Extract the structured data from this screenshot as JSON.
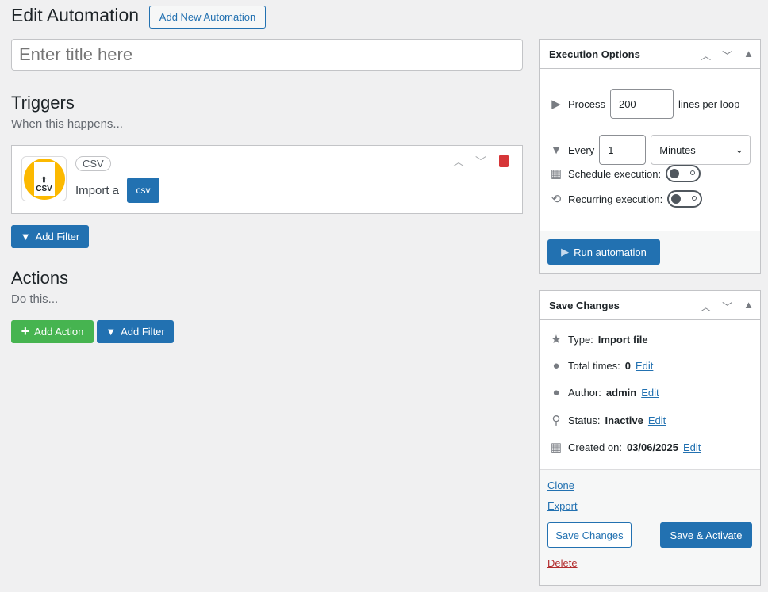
{
  "header": {
    "title": "Edit Automation",
    "add_new": "Add New Automation"
  },
  "title_input": {
    "placeholder": "Enter title here",
    "value": ""
  },
  "triggers": {
    "heading": "Triggers",
    "subheading": "When this happens...",
    "card": {
      "badge": "CSV",
      "icon_text": "CSV",
      "text": "Import a",
      "tag": "csv"
    },
    "add_filter": "Add Filter"
  },
  "actions": {
    "heading": "Actions",
    "subheading": "Do this...",
    "add_action": "Add Action",
    "add_filter": "Add Filter"
  },
  "execution": {
    "title": "Execution Options",
    "process_label": "Process",
    "process_value": "200",
    "process_suffix": "lines per loop",
    "every_label": "Every",
    "every_value": "1",
    "every_unit": "Minutes",
    "schedule_label": "Schedule execution:",
    "schedule_on": false,
    "recurring_label": "Recurring execution:",
    "recurring_on": false,
    "run": "Run automation"
  },
  "save": {
    "title": "Save Changes",
    "type_label": "Type:",
    "type_value": "Import file",
    "total_label": "Total times:",
    "total_value": "0",
    "author_label": "Author:",
    "author_value": "admin",
    "status_label": "Status:",
    "status_value": "Inactive",
    "created_label": "Created on:",
    "created_value": "03/06/2025",
    "edit": "Edit",
    "clone": "Clone",
    "export": "Export",
    "save_changes": "Save Changes",
    "save_activate": "Save & Activate",
    "delete": "Delete"
  },
  "colors": {
    "primary": "#2271b1",
    "success": "#46b450",
    "danger": "#d63638",
    "csv_icon": "#fcb900"
  }
}
